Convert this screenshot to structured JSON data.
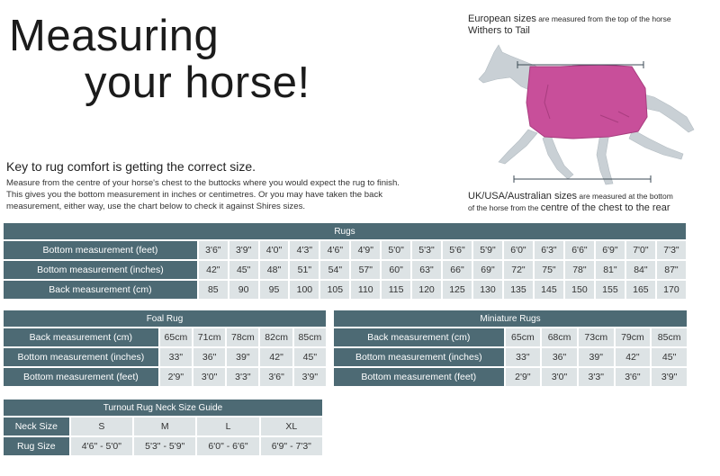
{
  "title": {
    "line1": "Measuring",
    "line2": "your horse!"
  },
  "key_heading": "Key to rug comfort is getting the correct size.",
  "intro": "Measure from the centre of your horse's chest to the buttocks where you would expect the rug to finish. This gives you the bottom measurement in inches or centimetres. Or you may have taken the back measurement, either way, use the chart below to check it against Shires sizes.",
  "eu_note": {
    "bold": "European sizes",
    "small": " are measured from the top of the horse",
    "line2": "Withers to Tail"
  },
  "uk_note": {
    "bold": "UK/USA/Australian sizes",
    "small1": " are measured at the bottom",
    "small2": "of the horse from the ",
    "big2": "centre of the chest to the rear"
  },
  "colors": {
    "header": "#4d6a74",
    "cell": "#dde3e5",
    "rug": "#c84f9a",
    "horse": "#c9d0d5"
  },
  "rugs": {
    "caption": "Rugs",
    "rows": [
      {
        "label": "Bottom measurement (feet)",
        "values": [
          "3'6\"",
          "3'9\"",
          "4'0\"",
          "4'3\"",
          "4'6\"",
          "4'9\"",
          "5'0\"",
          "5'3\"",
          "5'6\"",
          "5'9\"",
          "6'0\"",
          "6'3\"",
          "6'6\"",
          "6'9\"",
          "7'0\"",
          "7'3\""
        ]
      },
      {
        "label": "Bottom measurement (inches)",
        "values": [
          "42\"",
          "45\"",
          "48\"",
          "51\"",
          "54\"",
          "57\"",
          "60\"",
          "63\"",
          "66\"",
          "69\"",
          "72\"",
          "75\"",
          "78\"",
          "81\"",
          "84\"",
          "87\""
        ]
      },
      {
        "label": "Back measurement (cm)",
        "values": [
          "85",
          "90",
          "95",
          "100",
          "105",
          "110",
          "115",
          "120",
          "125",
          "130",
          "135",
          "145",
          "150",
          "155",
          "165",
          "170"
        ]
      }
    ]
  },
  "foal": {
    "caption": "Foal Rug",
    "rows": [
      {
        "label": "Back measurement (cm)",
        "values": [
          "65cm",
          "71cm",
          "78cm",
          "82cm",
          "85cm"
        ]
      },
      {
        "label": "Bottom measurement (inches)",
        "values": [
          "33\"",
          "36\"",
          "39\"",
          "42\"",
          "45\""
        ]
      },
      {
        "label": "Bottom measurement (feet)",
        "values": [
          "2'9\"",
          "3'0\"",
          "3'3\"",
          "3'6\"",
          "3'9\""
        ]
      }
    ]
  },
  "mini": {
    "caption": "Miniature Rugs",
    "rows": [
      {
        "label": "Back measurement (cm)",
        "values": [
          "65cm",
          "68cm",
          "73cm",
          "79cm",
          "85cm"
        ]
      },
      {
        "label": "Bottom measurement (inches)",
        "values": [
          "33\"",
          "36\"",
          "39\"",
          "42\"",
          "45\""
        ]
      },
      {
        "label": "Bottom measurement (feet)",
        "values": [
          "2'9\"",
          "3'0\"",
          "3'3\"",
          "3'6\"",
          "3'9\""
        ]
      }
    ]
  },
  "neck": {
    "caption": "Turnout Rug Neck Size Guide",
    "rows": [
      {
        "label": "Neck Size",
        "values": [
          "S",
          "M",
          "L",
          "XL"
        ]
      },
      {
        "label": "Rug Size",
        "values": [
          "4'6\" - 5'0\"",
          "5'3\" - 5'9\"",
          "6'0\" - 6'6\"",
          "6'9\" - 7'3\""
        ]
      }
    ]
  }
}
